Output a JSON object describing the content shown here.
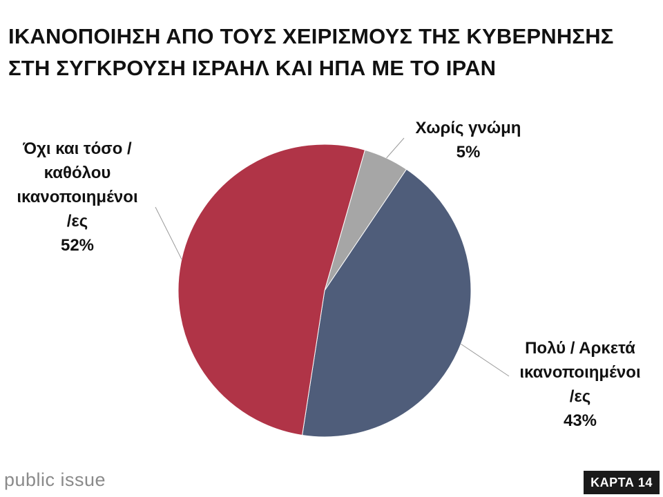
{
  "title": {
    "line1": "ΙΚΑΝΟΠΟΙΗΣΗ ΑΠΟ ΤΟΥΣ ΧΕΙΡΙΣΜΟΥΣ ΤΗΣ ΚΥΒΕΡΝΗΣΗΣ",
    "line2": "ΣΤΗ ΣΥΓΚΡΟΥΣΗ ΙΣΡΑΗΛ ΚΑΙ ΗΠΑ ΜΕ ΤΟ ΙΡΑΝ"
  },
  "chart_data": {
    "type": "pie",
    "slices": [
      {
        "label_lines": [
          "Χωρίς γνώμη"
        ],
        "value": 5,
        "value_label": "5%",
        "color": "#a6a6a6"
      },
      {
        "label_lines": [
          "Πολύ / Αρκετά",
          "ικανοποιημένοι",
          "/ες"
        ],
        "value": 43,
        "value_label": "43%",
        "color": "#4f5d7a"
      },
      {
        "label_lines": [
          "Όχι και τόσο /",
          "καθόλου",
          "ικανοποιημένοι",
          "/ες"
        ],
        "value": 52,
        "value_label": "52%",
        "color": "#b03447"
      }
    ]
  },
  "footer": {
    "brand": "public issue",
    "badge": "ΚΑΡΤΑ 14"
  }
}
